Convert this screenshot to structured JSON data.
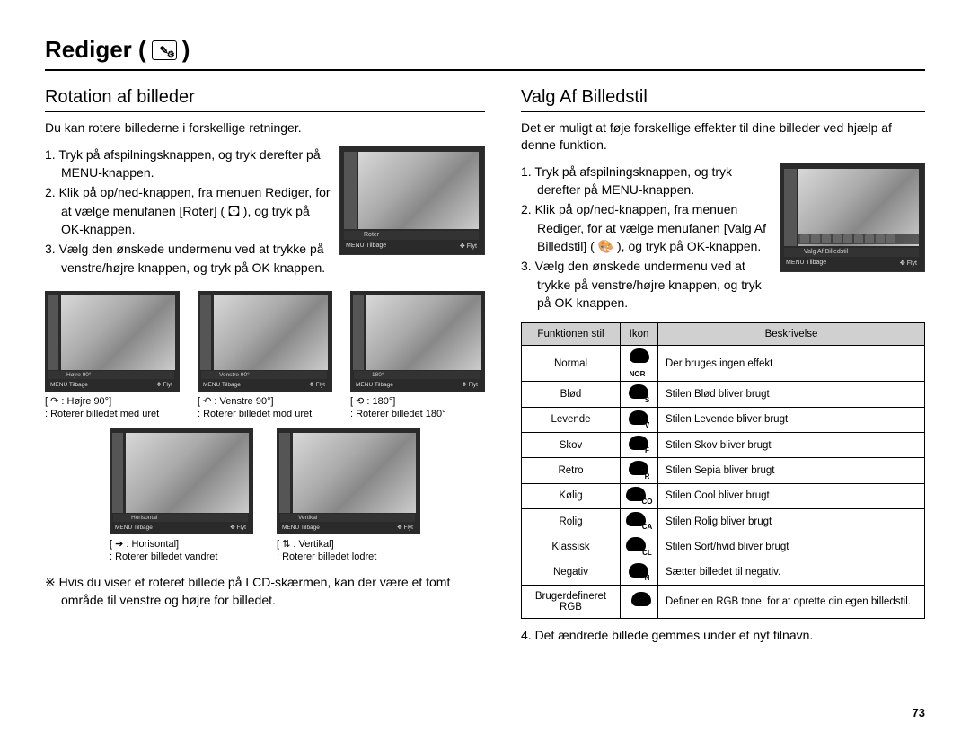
{
  "page": {
    "title_prefix": "Rediger (",
    "title_suffix": " )",
    "number": "73"
  },
  "left": {
    "section_title": "Rotation af billeder",
    "intro": "Du kan rotere billederne i forskellige retninger.",
    "steps": [
      "1. Tryk på afspilningsknappen, og tryk derefter på MENU-knappen.",
      "2. Klik på op/ned-knappen, fra menuen Rediger, for at vælge menufanen [Roter] ( 🖸 ), og tryk på OK-knappen.",
      "3. Vælg den ønskede undermenu ved at trykke på venstre/højre knappen, og tryk på OK knappen."
    ],
    "main_thumb": {
      "label": "Roter",
      "back": "Tilbage",
      "move": "Flyt"
    },
    "rot_items_row1": [
      {
        "label": "Højre 90°",
        "cap1": "[ ↷ : Højre 90°]",
        "cap2": ": Roterer billedet med uret"
      },
      {
        "label": "Venstre 90°",
        "cap1": "[ ↶ : Venstre 90°]",
        "cap2": ": Roterer billedet mod uret"
      },
      {
        "label": "180°",
        "cap1": "[ ⟲ : 180°]",
        "cap2": ": Roterer billedet 180°"
      }
    ],
    "rot_items_row2": [
      {
        "label": "Horisontal",
        "cap1": "[ ➔ : Horisontal]",
        "cap2": ": Roterer billedet vandret"
      },
      {
        "label": "Vertikal",
        "cap1": "[ ⇅ : Vertikal]",
        "cap2": ": Roterer billedet lodret"
      }
    ],
    "note": "※ Hvis du viser et roteret billede på LCD-skærmen, kan der være et tomt område til venstre og højre for billedet."
  },
  "right": {
    "section_title": "Valg Af Billedstil",
    "intro": "Det er muligt at føje forskellige effekter til dine billeder ved hjælp af denne funktion.",
    "steps": [
      "1. Tryk på afspilningsknappen, og tryk derefter på MENU-knappen.",
      "2. Klik på op/ned-knappen, fra menuen Rediger, for at vælge menufanen [Valg Af Billedstil] ( 🎨 ), og tryk på OK-knappen.",
      "3. Vælg den ønskede undermenu ved at trykke på venstre/højre knappen, og tryk på OK knappen."
    ],
    "main_thumb": {
      "label": "Valg Af Billedstil",
      "back": "Tilbage",
      "move": "Flyt"
    },
    "table": {
      "headers": [
        "Funktionen stil",
        "Ikon",
        "Beskrivelse"
      ],
      "rows": [
        {
          "name": "Normal",
          "sub": "NOR",
          "desc": "Der bruges ingen effekt"
        },
        {
          "name": "Blød",
          "sub": "S",
          "desc": "Stilen Blød bliver brugt"
        },
        {
          "name": "Levende",
          "sub": "V",
          "desc": "Stilen Levende bliver brugt"
        },
        {
          "name": "Skov",
          "sub": "F",
          "desc": "Stilen Skov bliver brugt"
        },
        {
          "name": "Retro",
          "sub": "R",
          "desc": "Stilen Sepia bliver brugt"
        },
        {
          "name": "Kølig",
          "sub": "CO",
          "desc": "Stilen Cool bliver brugt"
        },
        {
          "name": "Rolig",
          "sub": "CA",
          "desc": "Stilen Rolig bliver brugt"
        },
        {
          "name": "Klassisk",
          "sub": "CL",
          "desc": "Stilen Sort/hvid bliver brugt"
        },
        {
          "name": "Negativ",
          "sub": "N",
          "desc": "Sætter billedet til negativ."
        },
        {
          "name": "Brugerdefineret RGB",
          "sub": "",
          "desc": "Definer en RGB tone, for at oprette din egen billedstil."
        }
      ]
    },
    "final_step": "4. Det ændrede billede gemmes under et nyt filnavn."
  }
}
